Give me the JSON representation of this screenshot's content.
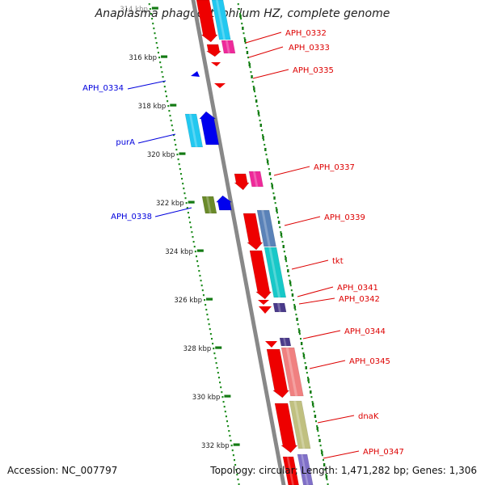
{
  "title": "Anaplasma phagocytophilum HZ, complete genome",
  "footer": {
    "accession_label": "Accession:",
    "accession": "NC_007797",
    "topology_label": "Topology:",
    "topology": "circular;",
    "length_label": "Length:",
    "length": "1,471,282 bp;",
    "genes_label": "Genes:",
    "genes": "1,306"
  },
  "kbp_ticks": [
    {
      "label": "314 kbp",
      "partial": true
    },
    {
      "label": "316 kbp"
    },
    {
      "label": "318 kbp"
    },
    {
      "label": "320 kbp"
    },
    {
      "label": "322 kbp"
    },
    {
      "label": "324 kbp"
    },
    {
      "label": "326 kbp"
    },
    {
      "label": "328 kbp"
    },
    {
      "label": "330 kbp"
    },
    {
      "label": "332 kbp"
    }
  ],
  "forward_genes": [
    {
      "label": "APH_0334",
      "color": "#0000dd"
    },
    {
      "label": "purA",
      "color": "#0000dd"
    },
    {
      "label": "APH_0338",
      "color": "#0000dd"
    }
  ],
  "reverse_genes": [
    {
      "label": "APH_0332",
      "color": "#dd0000"
    },
    {
      "label": "APH_0333",
      "color": "#dd0000"
    },
    {
      "label": "APH_0335",
      "color": "#dd0000"
    },
    {
      "label": "APH_0337",
      "color": "#dd0000"
    },
    {
      "label": "APH_0339",
      "color": "#dd0000"
    },
    {
      "label": "tkt",
      "color": "#dd0000"
    },
    {
      "label": "APH_0341",
      "color": "#dd0000"
    },
    {
      "label": "APH_0342",
      "color": "#dd0000"
    },
    {
      "label": "APH_0344",
      "color": "#dd0000"
    },
    {
      "label": "APH_0345",
      "color": "#dd0000"
    },
    {
      "label": "dnaK",
      "color": "#dd0000"
    },
    {
      "label": "APH_0347",
      "color": "#dd0000"
    }
  ],
  "colors": {
    "backbone": "#888888",
    "tick_dots": "#1a8a1a",
    "forward_arrow": "#0000ee",
    "reverse_arrow": "#ee0000",
    "light_blue": "#22c8f0",
    "pink": "#ee2a9a",
    "steel_blue": "#5a82b8",
    "cyan": "#18c8c8",
    "navy": "#4a3a8a",
    "salmon": "#f08080",
    "olive": "#c0c080",
    "slate": "#8070c8",
    "olive_green": "#6a8a2a"
  }
}
